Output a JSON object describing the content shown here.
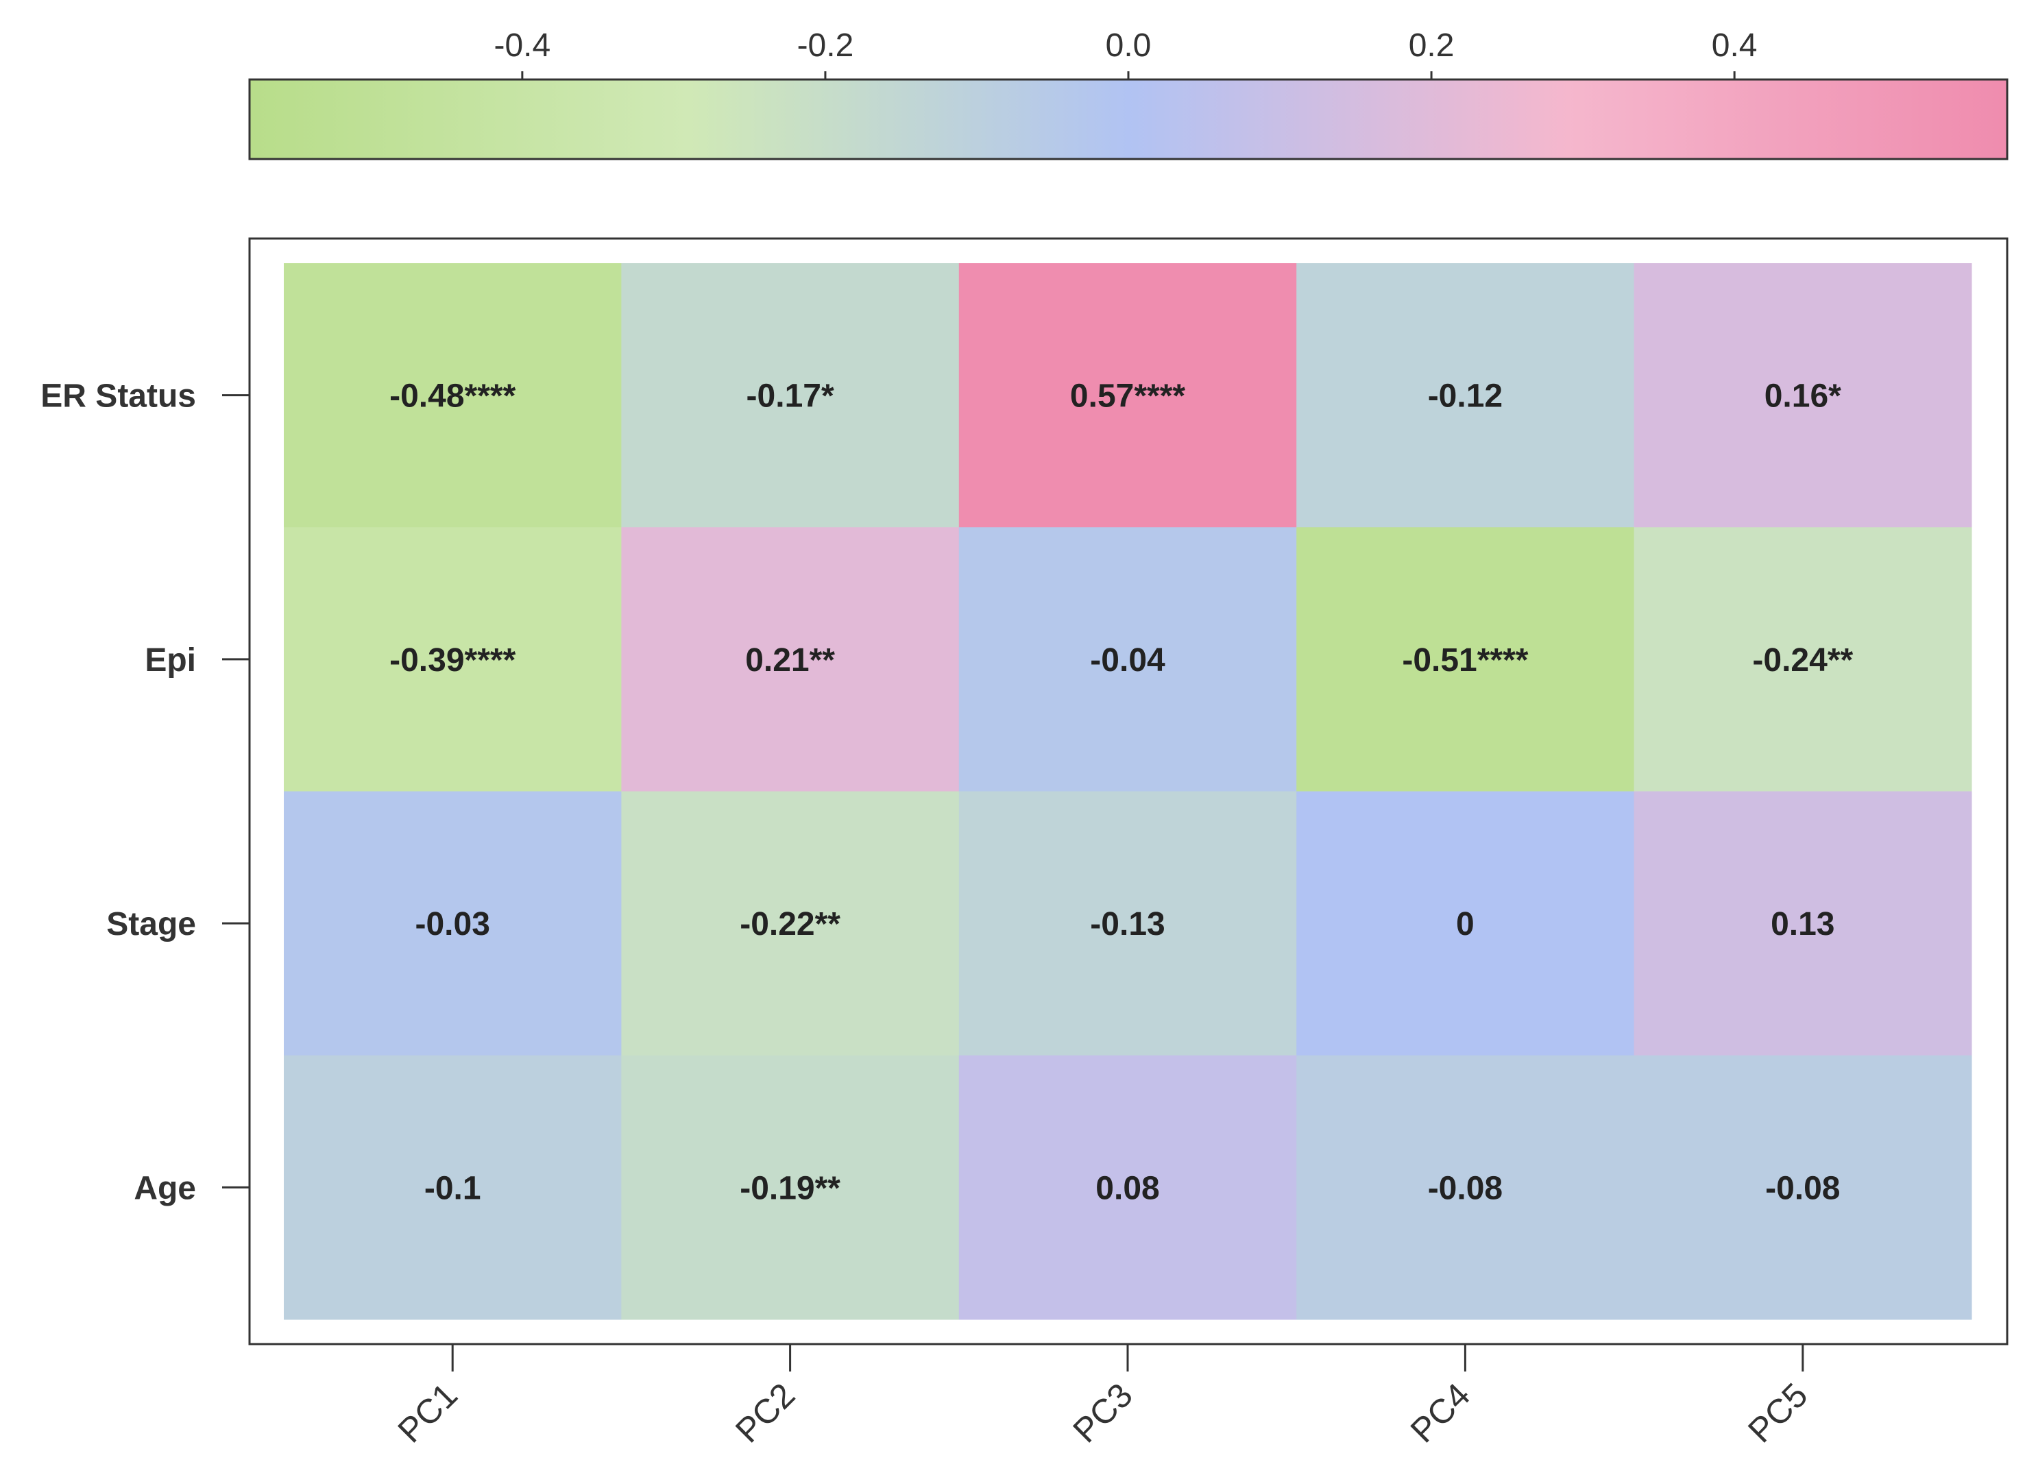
{
  "chart_data": {
    "type": "heatmap",
    "title": "",
    "columns": [
      "PC1",
      "PC2",
      "PC3",
      "PC4",
      "PC5"
    ],
    "rows": [
      "ER Status",
      "Epi",
      "Stage",
      "Age"
    ],
    "values": [
      [
        -0.48,
        -0.17,
        0.57,
        -0.12,
        0.16
      ],
      [
        -0.39,
        0.21,
        -0.04,
        -0.51,
        -0.24
      ],
      [
        -0.03,
        -0.22,
        -0.13,
        0,
        0.13
      ],
      [
        -0.1,
        -0.19,
        0.08,
        -0.08,
        -0.08
      ]
    ],
    "cell_labels": [
      [
        "-0.48****",
        "-0.17*",
        "0.57****",
        "-0.12",
        "0.16*"
      ],
      [
        "-0.39****",
        "0.21**",
        "-0.04",
        "-0.51****",
        "-0.24**"
      ],
      [
        "-0.03",
        "-0.22**",
        "-0.13",
        "0",
        "0.13"
      ],
      [
        "-0.1",
        "-0.19**",
        "0.08",
        "-0.08",
        "-0.08"
      ]
    ],
    "colorbar": {
      "range": [
        -0.58,
        0.58
      ],
      "ticks": [
        -0.4,
        -0.2,
        0.0,
        0.2,
        0.4
      ],
      "tick_labels": [
        "-0.4",
        "-0.2",
        "0.0",
        "0.2",
        "0.4"
      ],
      "placement": "top",
      "colors": [
        {
          "stop": 0.0,
          "color": "#b8dd8a"
        },
        {
          "stop": 0.25,
          "color": "#d0e9b6"
        },
        {
          "stop": 0.5,
          "color": "#b1c3f3"
        },
        {
          "stop": 0.75,
          "color": "#f5b7cd"
        },
        {
          "stop": 1.0,
          "color": "#ef8cae"
        }
      ]
    },
    "grid": false
  }
}
